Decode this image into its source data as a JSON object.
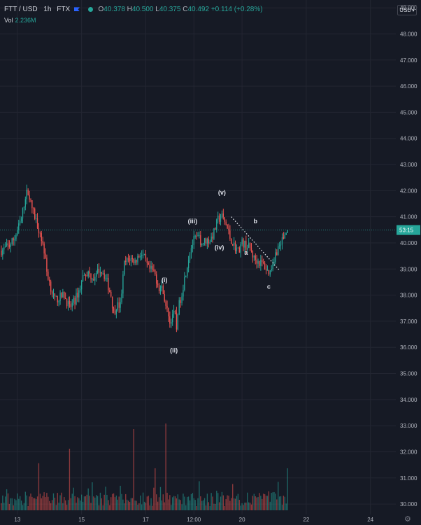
{
  "header": {
    "symbol": "FTT / USD",
    "interval": "1h",
    "exchange": "FTX",
    "open_label": "O",
    "open": "40.378",
    "high_label": "H",
    "high": "40.500",
    "low_label": "L",
    "low": "40.375",
    "close_label": "C",
    "close": "40.492",
    "change": "+0.114 (+0.28%)",
    "vol_label": "Vol",
    "vol_value": "2.236M"
  },
  "price_axis": {
    "currency": "USD"
  },
  "colors": {
    "background": "#161a25",
    "up": "#26a69a",
    "down": "#ef5350",
    "grid": "#232632",
    "axis_text": "#b2b5be",
    "last_price_line": "#26a69a"
  },
  "icons": {
    "currency_menu": "chevron-down-icon",
    "settings": "gear-icon"
  },
  "chart_data": {
    "type": "candlestick",
    "grid": true,
    "y_axis": {
      "position": "right",
      "range": [
        29.6,
        49.3
      ],
      "ticks": [
        "30.000",
        "31.000",
        "32.000",
        "33.000",
        "34.000",
        "35.000",
        "36.000",
        "37.000",
        "38.000",
        "39.000",
        "40.000",
        "41.000",
        "42.000",
        "43.000",
        "44.000",
        "45.000",
        "46.000",
        "47.000",
        "48.000",
        "49.000"
      ]
    },
    "x_axis": {
      "ticks": [
        "13",
        "15",
        "17",
        "12:00",
        "20",
        "22",
        "24"
      ],
      "tick_hours": [
        0,
        48,
        96,
        132,
        168,
        216,
        264
      ],
      "range_hours": [
        -13,
        283
      ]
    },
    "last_price": {
      "value": 40.492,
      "countdown": "53:15"
    },
    "candle_hours_range": [
      -12,
      202
    ],
    "price_path": [
      [
        -12,
        39.7
      ],
      [
        -6,
        39.9
      ],
      [
        -2,
        40.2
      ],
      [
        3,
        40.9
      ],
      [
        6,
        41.8
      ],
      [
        8,
        42.0
      ],
      [
        10,
        41.5
      ],
      [
        13,
        41.0
      ],
      [
        17,
        40.4
      ],
      [
        20,
        39.7
      ],
      [
        22,
        38.9
      ],
      [
        25,
        38.3
      ],
      [
        28,
        37.8
      ],
      [
        31,
        37.9
      ],
      [
        35,
        38.0
      ],
      [
        39,
        37.5
      ],
      [
        43,
        37.8
      ],
      [
        47,
        38.3
      ],
      [
        50,
        38.9
      ],
      [
        54,
        38.8
      ],
      [
        58,
        38.6
      ],
      [
        61,
        39.0
      ],
      [
        64,
        38.9
      ],
      [
        67,
        38.5
      ],
      [
        70,
        38.0
      ],
      [
        72,
        37.3
      ],
      [
        74,
        37.6
      ],
      [
        77,
        37.6
      ],
      [
        80,
        39.2
      ],
      [
        84,
        39.4
      ],
      [
        88,
        39.3
      ],
      [
        92,
        39.6
      ],
      [
        95,
        39.4
      ],
      [
        98,
        39.0
      ],
      [
        102,
        38.9
      ],
      [
        106,
        38.3
      ],
      [
        109,
        38.2
      ],
      [
        111,
        37.5
      ],
      [
        113,
        37.3
      ],
      [
        114,
        36.9
      ],
      [
        116,
        37.3
      ],
      [
        118,
        37.2
      ],
      [
        119,
        36.7
      ],
      [
        120,
        37.4
      ],
      [
        123,
        38.1
      ],
      [
        126,
        38.9
      ],
      [
        129,
        39.7
      ],
      [
        132,
        40.1
      ],
      [
        135,
        40.2
      ],
      [
        138,
        40.0
      ],
      [
        141,
        40.1
      ],
      [
        144,
        40.1
      ],
      [
        147,
        40.4
      ],
      [
        150,
        40.9
      ],
      [
        153,
        41.0
      ],
      [
        156,
        40.7
      ],
      [
        159,
        40.2
      ],
      [
        162,
        39.9
      ],
      [
        165,
        39.7
      ],
      [
        168,
        40.0
      ],
      [
        171,
        39.9
      ],
      [
        174,
        39.8
      ],
      [
        177,
        39.4
      ],
      [
        180,
        39.3
      ],
      [
        183,
        39.2
      ],
      [
        185,
        39.1
      ],
      [
        187,
        38.9
      ],
      [
        189,
        38.9
      ],
      [
        191,
        39.3
      ],
      [
        194,
        39.7
      ],
      [
        198,
        40.1
      ],
      [
        202,
        40.49
      ]
    ],
    "volume_scale_max": 1.0,
    "volume_spikes": [
      [
        16,
        0.26
      ],
      [
        39,
        0.44
      ],
      [
        56,
        0.2
      ],
      [
        87,
        0.58
      ],
      [
        103,
        0.3
      ],
      [
        111,
        0.62
      ],
      [
        149,
        0.14
      ],
      [
        202,
        0.3
      ]
    ],
    "annotations": [
      {
        "text": "(v)",
        "x_hour": 153,
        "price": 41.85
      },
      {
        "text": "(iii)",
        "x_hour": 131,
        "price": 40.75
      },
      {
        "text": "(iv)",
        "x_hour": 151,
        "price": 39.75
      },
      {
        "text": "(i)",
        "x_hour": 110,
        "price": 38.5
      },
      {
        "text": "(ii)",
        "x_hour": 117,
        "price": 35.8
      },
      {
        "text": "a",
        "x_hour": 171,
        "price": 39.55
      },
      {
        "text": "b",
        "x_hour": 178,
        "price": 40.75
      },
      {
        "text": "c",
        "x_hour": 188,
        "price": 38.25
      }
    ],
    "trendline": {
      "style": "dotted",
      "from": [
        160,
        41.0
      ],
      "to": [
        196,
        38.95
      ]
    }
  }
}
